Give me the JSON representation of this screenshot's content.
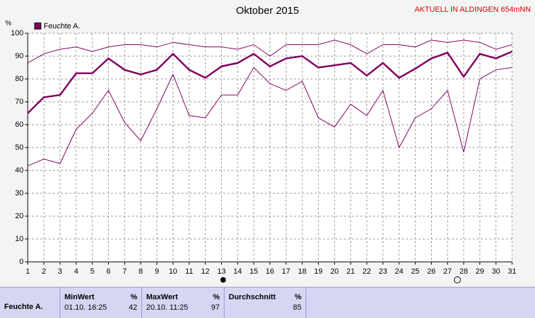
{
  "chart_data": {
    "type": "line",
    "title": "Oktober 2015",
    "subtitle": "AKTUELL IN ALDINGEN 654mNN",
    "y_label": "%",
    "x": [
      1,
      2,
      3,
      4,
      5,
      6,
      7,
      8,
      9,
      10,
      11,
      12,
      13,
      14,
      15,
      16,
      17,
      18,
      19,
      20,
      21,
      22,
      23,
      24,
      25,
      26,
      27,
      28,
      29,
      30,
      31
    ],
    "xlim": [
      1,
      31
    ],
    "xticks": [
      1,
      2,
      3,
      4,
      5,
      6,
      7,
      8,
      9,
      10,
      11,
      12,
      13,
      14,
      15,
      16,
      17,
      18,
      19,
      20,
      21,
      22,
      23,
      24,
      25,
      26,
      27,
      28,
      29,
      30,
      31
    ],
    "ylim": [
      0,
      100
    ],
    "yticks": [
      0,
      10,
      20,
      30,
      40,
      50,
      60,
      70,
      80,
      90,
      100
    ],
    "grid": true,
    "legend": "top-left",
    "series": [
      {
        "name": "Feuchte A.",
        "color": "#800060",
        "values": [
          65,
          72,
          73,
          82.5,
          82.5,
          89,
          84,
          82,
          84,
          91,
          84,
          80.5,
          85.5,
          87,
          91,
          85.5,
          89,
          90,
          85,
          86,
          87,
          81.5,
          87,
          80.5,
          84.5,
          89,
          91.5,
          81,
          91,
          89,
          92
        ]
      },
      {
        "color": "#800060",
        "values": [
          87,
          91,
          93,
          94,
          92,
          94,
          95,
          95,
          94,
          96,
          95,
          94,
          94,
          93,
          95,
          90,
          95,
          95,
          95,
          97,
          95,
          91,
          95,
          95,
          94,
          97,
          96,
          97,
          96,
          93,
          95
        ]
      },
      {
        "color": "#800060",
        "values": [
          42,
          45,
          43,
          58,
          65,
          75,
          61,
          53,
          67,
          82,
          64,
          63,
          73,
          73,
          85,
          78,
          75,
          79,
          63,
          59,
          69,
          64,
          75,
          50,
          63,
          67,
          75,
          48,
          80,
          84,
          85
        ]
      }
    ]
  },
  "table": {
    "row_label": "Feuchte A.",
    "min_header": "MinWert",
    "min_unit": "%",
    "min_time": "01.10. 16:25",
    "min_value": 42,
    "max_header": "MaxWert",
    "max_unit": "%",
    "max_time": "20.10. 11:25",
    "max_value": 97,
    "avg_header": "Durchschnitt",
    "avg_unit": "%",
    "avg_value": 85
  }
}
